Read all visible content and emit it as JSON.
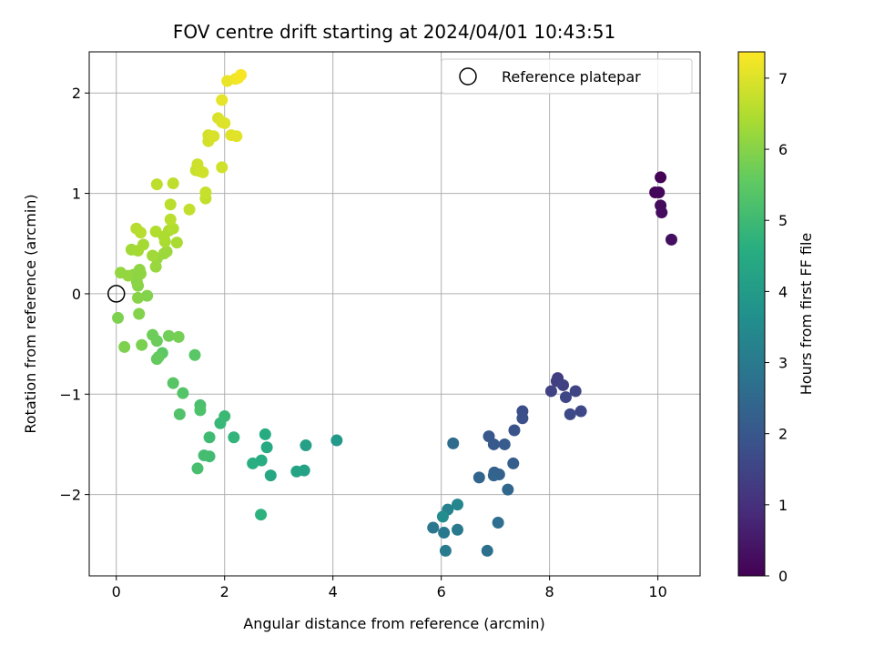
{
  "chart_data": {
    "type": "scatter",
    "title": "FOV centre drift starting at 2024/04/01 10:43:51",
    "xlabel": "Angular distance from reference (arcmin)",
    "ylabel": "Rotation from reference (arcmin)",
    "xlim": [
      -0.5,
      10.78
    ],
    "ylim": [
      -2.81,
      2.41
    ],
    "x_ticks": [
      0,
      2,
      4,
      6,
      8,
      10
    ],
    "y_ticks": [
      -2,
      -1,
      0,
      1,
      2
    ],
    "grid": true,
    "legend": {
      "placement": "top-right",
      "entries": [
        "Reference platepar"
      ]
    },
    "reference_point": {
      "x": 0,
      "y": 0,
      "label": "Reference platepar",
      "marker": "open-circle"
    },
    "colorbar": {
      "label": "Hours from first FF file",
      "colormap": "viridis",
      "range": [
        0,
        7.37
      ],
      "ticks": [
        0,
        1,
        2,
        3,
        4,
        5,
        6,
        7
      ]
    },
    "series": [
      {
        "points": [
          {
            "x": 10.05,
            "y": 1.16,
            "c": 0.05
          },
          {
            "x": 9.95,
            "y": 1.01,
            "c": 0.1
          },
          {
            "x": 10.02,
            "y": 1.01,
            "c": 0.15
          },
          {
            "x": 10.05,
            "y": 0.88,
            "c": 0.2
          },
          {
            "x": 10.07,
            "y": 0.81,
            "c": 0.25
          },
          {
            "x": 10.25,
            "y": 0.54,
            "c": 0.3
          },
          {
            "x": 8.15,
            "y": -0.84,
            "c": 1.3
          },
          {
            "x": 8.13,
            "y": -0.87,
            "c": 1.35
          },
          {
            "x": 8.25,
            "y": -0.91,
            "c": 1.4
          },
          {
            "x": 8.03,
            "y": -0.97,
            "c": 1.45
          },
          {
            "x": 8.48,
            "y": -0.97,
            "c": 1.5
          },
          {
            "x": 8.3,
            "y": -1.03,
            "c": 1.55
          },
          {
            "x": 8.58,
            "y": -1.17,
            "c": 1.6
          },
          {
            "x": 8.38,
            "y": -1.2,
            "c": 1.65
          },
          {
            "x": 7.5,
            "y": -1.17,
            "c": 1.75
          },
          {
            "x": 7.5,
            "y": -1.24,
            "c": 1.8
          },
          {
            "x": 7.35,
            "y": -1.36,
            "c": 1.9
          },
          {
            "x": 6.88,
            "y": -1.42,
            "c": 2.0
          },
          {
            "x": 6.97,
            "y": -1.5,
            "c": 2.05
          },
          {
            "x": 7.17,
            "y": -1.5,
            "c": 2.1
          },
          {
            "x": 7.33,
            "y": -1.69,
            "c": 2.2
          },
          {
            "x": 6.98,
            "y": -1.78,
            "c": 2.25
          },
          {
            "x": 7.07,
            "y": -1.8,
            "c": 2.3
          },
          {
            "x": 6.97,
            "y": -1.81,
            "c": 2.35
          },
          {
            "x": 6.7,
            "y": -1.83,
            "c": 2.4
          },
          {
            "x": 7.23,
            "y": -1.95,
            "c": 2.45
          },
          {
            "x": 6.22,
            "y": -1.49,
            "c": 2.55
          },
          {
            "x": 7.05,
            "y": -2.28,
            "c": 2.65
          },
          {
            "x": 6.85,
            "y": -2.56,
            "c": 2.7
          },
          {
            "x": 5.85,
            "y": -2.33,
            "c": 2.9
          },
          {
            "x": 6.05,
            "y": -2.38,
            "c": 2.95
          },
          {
            "x": 6.3,
            "y": -2.35,
            "c": 3.0
          },
          {
            "x": 6.08,
            "y": -2.56,
            "c": 3.05
          },
          {
            "x": 6.12,
            "y": -2.15,
            "c": 3.25
          },
          {
            "x": 6.3,
            "y": -2.1,
            "c": 3.35
          },
          {
            "x": 6.03,
            "y": -2.22,
            "c": 3.55
          },
          {
            "x": 4.07,
            "y": -1.46,
            "c": 3.95
          },
          {
            "x": 3.5,
            "y": -1.51,
            "c": 4.15
          },
          {
            "x": 3.47,
            "y": -1.76,
            "c": 4.2
          },
          {
            "x": 3.33,
            "y": -1.77,
            "c": 4.25
          },
          {
            "x": 2.85,
            "y": -1.81,
            "c": 4.35
          },
          {
            "x": 2.78,
            "y": -1.53,
            "c": 4.45
          },
          {
            "x": 2.75,
            "y": -1.4,
            "c": 4.5
          },
          {
            "x": 2.68,
            "y": -1.66,
            "c": 4.55
          },
          {
            "x": 2.52,
            "y": -1.69,
            "c": 4.6
          },
          {
            "x": 2.67,
            "y": -2.2,
            "c": 4.7
          },
          {
            "x": 2.17,
            "y": -1.43,
            "c": 4.8
          },
          {
            "x": 1.92,
            "y": -1.29,
            "c": 4.9
          },
          {
            "x": 2.0,
            "y": -1.22,
            "c": 4.95
          },
          {
            "x": 1.72,
            "y": -1.43,
            "c": 5.0
          },
          {
            "x": 1.72,
            "y": -1.62,
            "c": 5.05
          },
          {
            "x": 1.62,
            "y": -1.61,
            "c": 5.1
          },
          {
            "x": 1.5,
            "y": -1.74,
            "c": 5.15
          },
          {
            "x": 1.55,
            "y": -1.11,
            "c": 5.2
          },
          {
            "x": 1.55,
            "y": -1.16,
            "c": 5.25
          },
          {
            "x": 1.17,
            "y": -1.2,
            "c": 5.3
          },
          {
            "x": 1.23,
            "y": -0.99,
            "c": 5.35
          },
          {
            "x": 1.05,
            "y": -0.89,
            "c": 5.4
          },
          {
            "x": 1.45,
            "y": -0.61,
            "c": 5.45
          },
          {
            "x": 0.85,
            "y": -0.59,
            "c": 5.5
          },
          {
            "x": 0.78,
            "y": -0.63,
            "c": 5.55
          },
          {
            "x": 0.75,
            "y": -0.65,
            "c": 5.6
          },
          {
            "x": 0.75,
            "y": -0.47,
            "c": 5.65
          },
          {
            "x": 0.67,
            "y": -0.41,
            "c": 5.7
          },
          {
            "x": 0.97,
            "y": -0.42,
            "c": 5.75
          },
          {
            "x": 1.15,
            "y": -0.43,
            "c": 5.8
          },
          {
            "x": 0.47,
            "y": -0.51,
            "c": 5.85
          },
          {
            "x": 0.15,
            "y": -0.53,
            "c": 5.9
          },
          {
            "x": 0.03,
            "y": -0.24,
            "c": 5.9
          },
          {
            "x": 0.42,
            "y": -0.2,
            "c": 5.95
          },
          {
            "x": 0.57,
            "y": -0.02,
            "c": 5.95
          },
          {
            "x": 0.4,
            "y": -0.04,
            "c": 6.0
          },
          {
            "x": 0.4,
            "y": 0.08,
            "c": 6.0
          },
          {
            "x": 0.38,
            "y": 0.12,
            "c": 6.05
          },
          {
            "x": 0.32,
            "y": 0.19,
            "c": 6.05
          },
          {
            "x": 0.45,
            "y": 0.2,
            "c": 6.1
          },
          {
            "x": 0.43,
            "y": 0.24,
            "c": 6.1
          },
          {
            "x": 0.08,
            "y": 0.21,
            "c": 6.15
          },
          {
            "x": 0.22,
            "y": 0.18,
            "c": 6.15
          },
          {
            "x": 0.73,
            "y": 0.27,
            "c": 6.2
          },
          {
            "x": 0.75,
            "y": 0.35,
            "c": 6.2
          },
          {
            "x": 0.88,
            "y": 0.4,
            "c": 6.25
          },
          {
            "x": 0.93,
            "y": 0.42,
            "c": 6.25
          },
          {
            "x": 0.67,
            "y": 0.38,
            "c": 6.3
          },
          {
            "x": 0.28,
            "y": 0.44,
            "c": 6.3
          },
          {
            "x": 0.4,
            "y": 0.43,
            "c": 6.35
          },
          {
            "x": 0.5,
            "y": 0.49,
            "c": 6.35
          },
          {
            "x": 0.9,
            "y": 0.52,
            "c": 6.4
          },
          {
            "x": 1.12,
            "y": 0.51,
            "c": 6.4
          },
          {
            "x": 0.88,
            "y": 0.57,
            "c": 6.45
          },
          {
            "x": 0.97,
            "y": 0.63,
            "c": 6.45
          },
          {
            "x": 1.05,
            "y": 0.65,
            "c": 6.5
          },
          {
            "x": 0.73,
            "y": 0.62,
            "c": 6.5
          },
          {
            "x": 0.37,
            "y": 0.65,
            "c": 6.55
          },
          {
            "x": 0.45,
            "y": 0.61,
            "c": 6.55
          },
          {
            "x": 1.0,
            "y": 0.74,
            "c": 6.6
          },
          {
            "x": 1.0,
            "y": 0.89,
            "c": 6.6
          },
          {
            "x": 0.75,
            "y": 1.09,
            "c": 6.65
          },
          {
            "x": 1.05,
            "y": 1.1,
            "c": 6.65
          },
          {
            "x": 1.35,
            "y": 0.84,
            "c": 6.7
          },
          {
            "x": 1.65,
            "y": 0.95,
            "c": 6.7
          },
          {
            "x": 1.65,
            "y": 1.01,
            "c": 6.75
          },
          {
            "x": 1.47,
            "y": 1.23,
            "c": 6.75
          },
          {
            "x": 1.5,
            "y": 1.29,
            "c": 6.8
          },
          {
            "x": 1.55,
            "y": 1.22,
            "c": 6.8
          },
          {
            "x": 1.6,
            "y": 1.21,
            "c": 6.85
          },
          {
            "x": 1.95,
            "y": 1.26,
            "c": 6.85
          },
          {
            "x": 1.7,
            "y": 1.52,
            "c": 6.9
          },
          {
            "x": 1.7,
            "y": 1.58,
            "c": 6.9
          },
          {
            "x": 1.8,
            "y": 1.57,
            "c": 6.95
          },
          {
            "x": 1.88,
            "y": 1.75,
            "c": 6.95
          },
          {
            "x": 1.95,
            "y": 1.71,
            "c": 7.0
          },
          {
            "x": 2.0,
            "y": 1.7,
            "c": 7.0
          },
          {
            "x": 2.12,
            "y": 1.58,
            "c": 7.05
          },
          {
            "x": 2.22,
            "y": 1.57,
            "c": 7.05
          },
          {
            "x": 1.95,
            "y": 1.93,
            "c": 7.1
          },
          {
            "x": 2.05,
            "y": 2.12,
            "c": 7.15
          },
          {
            "x": 2.2,
            "y": 2.14,
            "c": 7.2
          },
          {
            "x": 2.25,
            "y": 2.15,
            "c": 7.25
          },
          {
            "x": 2.3,
            "y": 2.18,
            "c": 7.3
          }
        ]
      }
    ]
  }
}
